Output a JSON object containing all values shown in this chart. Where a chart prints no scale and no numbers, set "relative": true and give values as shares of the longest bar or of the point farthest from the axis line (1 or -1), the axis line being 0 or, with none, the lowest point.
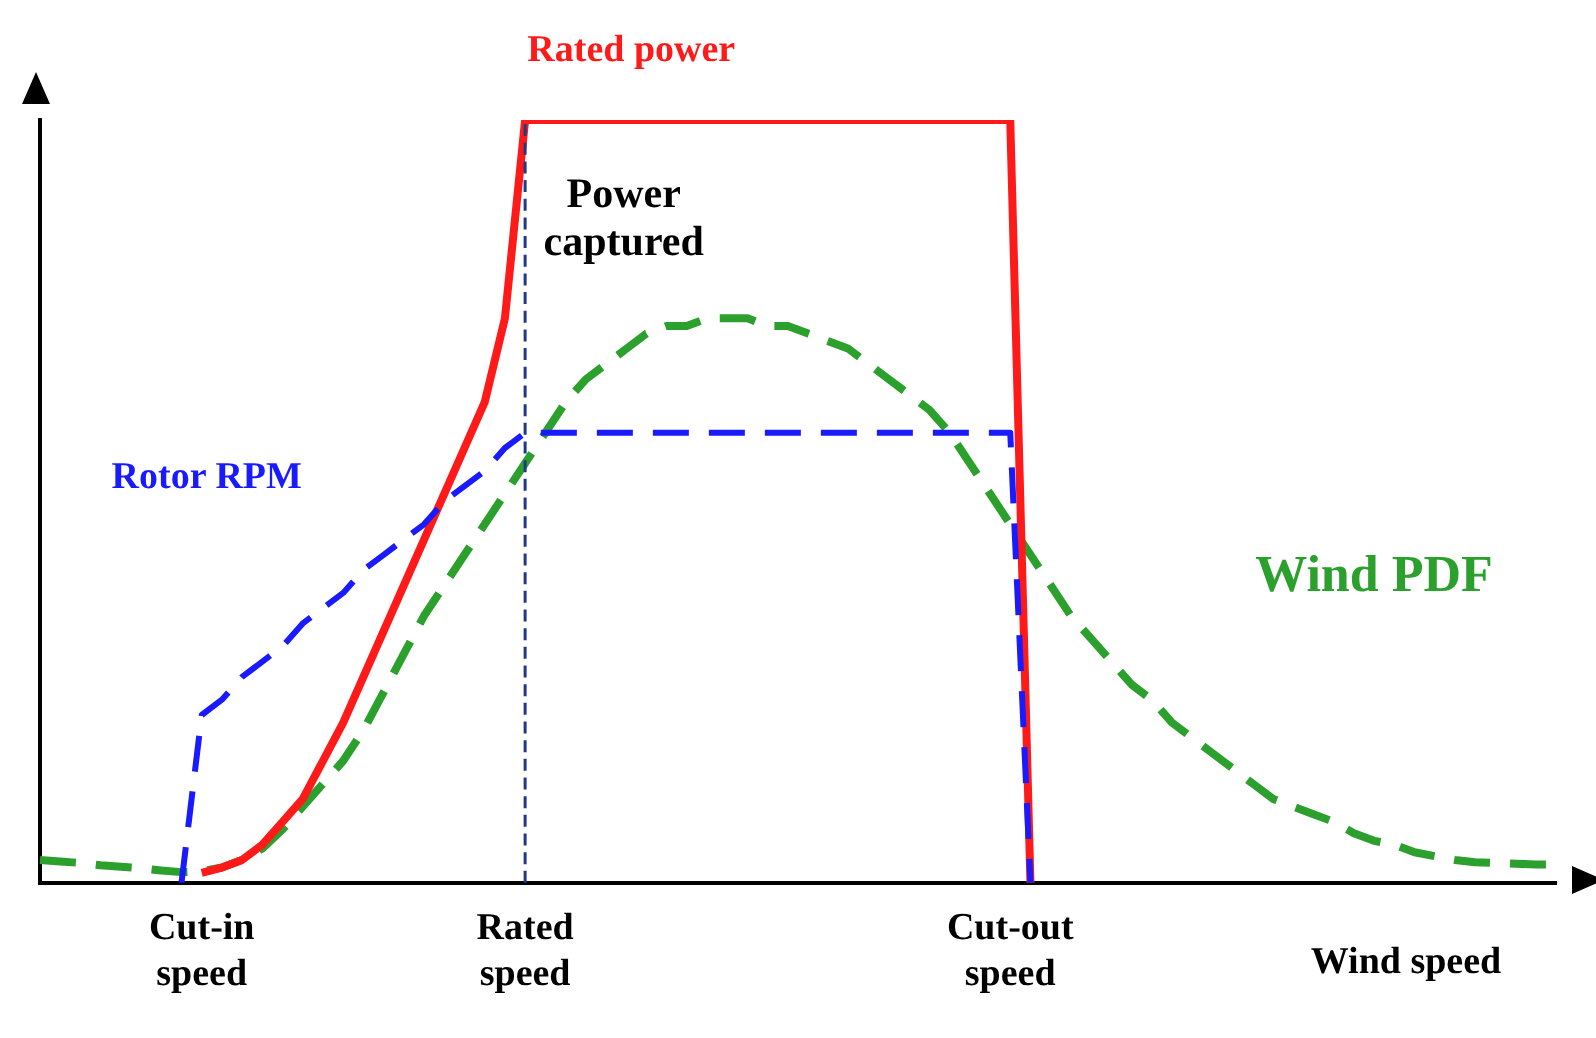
{
  "chart_data": {
    "type": "line",
    "relative": true,
    "xlabel": "Wind speed",
    "categories": [
      null,
      null,
      null,
      null,
      null,
      null,
      null,
      null,
      "Cut-in speed",
      null,
      null,
      null,
      null,
      null,
      null,
      null,
      null,
      null,
      null,
      null,
      null,
      null,
      null,
      null,
      "Rated speed",
      null,
      null,
      null,
      null,
      null,
      null,
      null,
      null,
      null,
      null,
      null,
      null,
      null,
      null,
      null,
      null,
      null,
      null,
      null,
      null,
      null,
      null,
      null,
      "Cut-out speed",
      null,
      null,
      null,
      null,
      null,
      null,
      null,
      null,
      null,
      null,
      null,
      null,
      null,
      null,
      null,
      null,
      null,
      null,
      null,
      null,
      null,
      null,
      null,
      null,
      null,
      null,
      null
    ],
    "series": [
      {
        "name": "Rotor RPM",
        "color": "#1a1aff",
        "line_style": "dashed",
        "values": [
          null,
          null,
          null,
          null,
          null,
          null,
          null,
          0,
          0.22,
          0.24,
          0.27,
          0.29,
          0.31,
          0.34,
          0.36,
          0.38,
          0.41,
          0.43,
          0.45,
          0.47,
          0.5,
          0.52,
          0.54,
          0.57,
          0.59,
          0.59,
          0.59,
          0.59,
          0.59,
          0.59,
          0.59,
          0.59,
          0.59,
          0.59,
          0.59,
          0.59,
          0.59,
          0.59,
          0.59,
          0.59,
          0.59,
          0.59,
          0.59,
          0.59,
          0.59,
          0.59,
          0.59,
          0.59,
          0.59,
          0,
          null,
          null,
          null,
          null,
          null,
          null,
          null,
          null,
          null,
          null,
          null,
          null,
          null,
          null,
          null,
          null,
          null,
          null,
          null,
          null,
          null,
          null,
          null,
          null,
          null,
          null
        ]
      },
      {
        "name": "Rated power",
        "color": "#ff1a1a",
        "line_style": "solid",
        "values": [
          null,
          null,
          null,
          null,
          null,
          null,
          null,
          null,
          0.013,
          0.02,
          0.03,
          0.05,
          0.08,
          0.11,
          0.16,
          0.21,
          0.27,
          0.33,
          0.39,
          0.45,
          0.51,
          0.57,
          0.63,
          0.74,
          1,
          1,
          1,
          1,
          1,
          1,
          1,
          1,
          1,
          1,
          1,
          1,
          1,
          1,
          1,
          1,
          1,
          1,
          1,
          1,
          1,
          1,
          1,
          1,
          1,
          0,
          null,
          null,
          null,
          null,
          null,
          null,
          null,
          null,
          null,
          null,
          null,
          null,
          null,
          null,
          null,
          null,
          null,
          null,
          null,
          null,
          null,
          null,
          null,
          null,
          null,
          null
        ]
      },
      {
        "name": "Wind PDF",
        "color": "#2ca02c",
        "line_style": "dashed",
        "values": [
          0.03,
          0.028,
          0.026,
          0.023,
          0.021,
          0.019,
          0.016,
          0.014,
          0.015,
          0.02,
          0.03,
          0.045,
          0.07,
          0.1,
          0.13,
          0.16,
          0.2,
          0.25,
          0.3,
          0.35,
          0.39,
          0.43,
          0.47,
          0.51,
          0.55,
          0.59,
          0.63,
          0.66,
          0.68,
          0.7,
          0.72,
          0.73,
          0.73,
          0.74,
          0.74,
          0.74,
          0.73,
          0.73,
          0.72,
          0.71,
          0.7,
          0.68,
          0.66,
          0.64,
          0.62,
          0.59,
          0.55,
          0.51,
          0.47,
          0.43,
          0.39,
          0.35,
          0.32,
          0.29,
          0.26,
          0.24,
          0.21,
          0.19,
          0.17,
          0.15,
          0.13,
          0.11,
          0.1,
          0.09,
          0.08,
          0.065,
          0.055,
          0.05,
          0.04,
          0.035,
          0.03,
          0.027,
          0.026,
          0.025,
          0.024,
          0.024
        ]
      }
    ],
    "ref_lines": [
      {
        "axis": "x",
        "value": "Rated speed",
        "color": "#1f3a8a",
        "line_style": "dashed"
      }
    ],
    "annotations": [
      "Power captured"
    ],
    "grid": false,
    "legend": false,
    "marker": "none"
  }
}
